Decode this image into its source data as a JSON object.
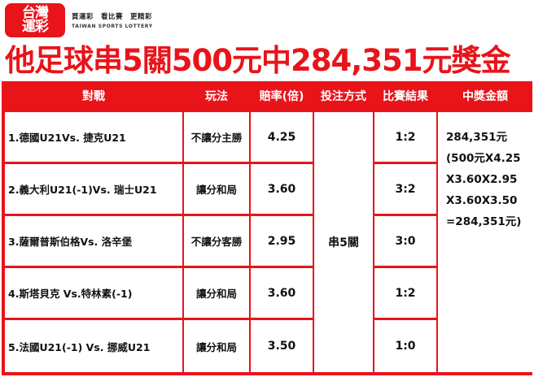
{
  "brand": {
    "logo_text": "台灣\n運彩",
    "slogan": "買運彩　看比賽　更精彩",
    "name_en": "TAIWAN SPORTS LOTTERY",
    "accent_color": "#e8141a"
  },
  "title": "他足球串5關500元中284,351元獎金",
  "table": {
    "headers": {
      "match": "對戰",
      "play": "玩法",
      "odds": "賠率(倍)",
      "bet_type": "投注方式",
      "result": "比賽結果",
      "prize": "中獎金額"
    },
    "rows": [
      {
        "match": "1.德國U21Vs. 捷克U21",
        "play": "不讓分主勝",
        "odds": "4.25",
        "result": "1:2"
      },
      {
        "match": "2.義大利U21(-1)Vs. 瑞士U21",
        "play": "讓分和局",
        "odds": "3.60",
        "result": "3:2"
      },
      {
        "match": "3.薩爾普斯伯格Vs. 洛辛堡",
        "play": "不讓分客勝",
        "odds": "2.95",
        "result": "3:0"
      },
      {
        "match": "4.斯塔貝克 Vs.特林素(-1)",
        "play": "讓分和局",
        "odds": "3.60",
        "result": "1:2"
      },
      {
        "match": "5.法國U21(-1) Vs. 挪威U21",
        "play": "讓分和局",
        "odds": "3.50",
        "result": "1:0"
      }
    ],
    "bet_type": "串5關",
    "prize_lines": [
      "284,351元",
      "(500元X4.25",
      "X3.60X2.95",
      "X3.60X3.50",
      "=284,351元)"
    ]
  }
}
